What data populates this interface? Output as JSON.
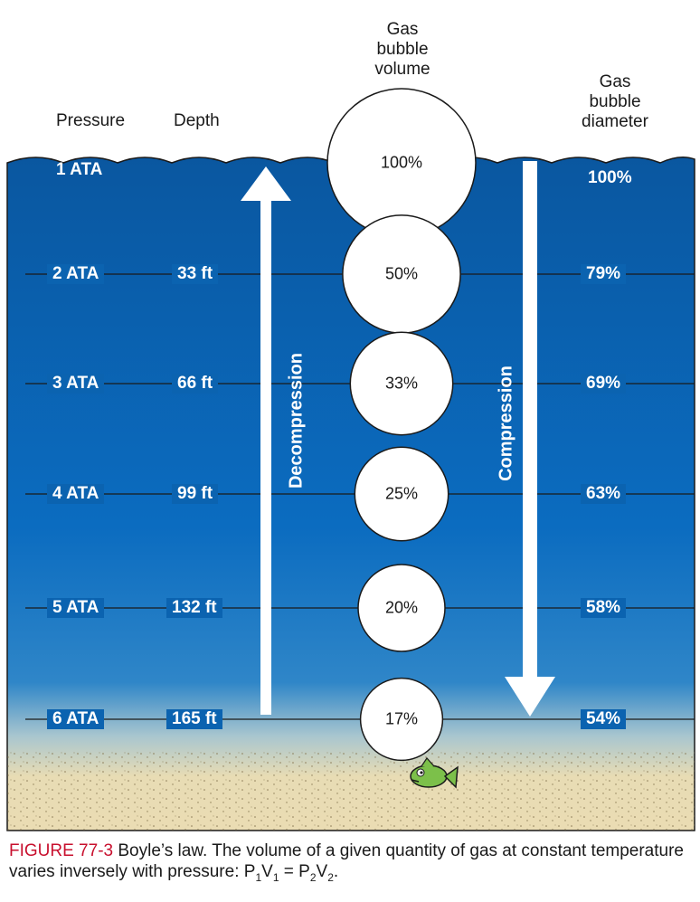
{
  "headers": {
    "pressure": "Pressure",
    "depth": "Depth",
    "volume_lines": [
      "Gas",
      "bubble",
      "volume"
    ],
    "diameter_lines": [
      "Gas",
      "bubble",
      "diameter"
    ]
  },
  "levels": [
    {
      "pressure": "1 ATA",
      "depth": "",
      "volume_pct": 100,
      "volume_label": "100%",
      "diameter": "100%"
    },
    {
      "pressure": "2 ATA",
      "depth": "33 ft",
      "volume_pct": 50,
      "volume_label": "50%",
      "diameter": "79%"
    },
    {
      "pressure": "3 ATA",
      "depth": "66 ft",
      "volume_pct": 33,
      "volume_label": "33%",
      "diameter": "69%"
    },
    {
      "pressure": "4 ATA",
      "depth": "99 ft",
      "volume_pct": 25,
      "volume_label": "25%",
      "diameter": "63%"
    },
    {
      "pressure": "5 ATA",
      "depth": "132 ft",
      "volume_pct": 20,
      "volume_label": "20%",
      "diameter": "58%"
    },
    {
      "pressure": "6 ATA",
      "depth": "165 ft",
      "volume_pct": 17,
      "volume_label": "17%",
      "diameter": "54%"
    }
  ],
  "arrows": {
    "up_label": "Decompression",
    "down_label": "Compression"
  },
  "caption": {
    "figure": "FIGURE 77-3",
    "text": " Boyle’s law. The volume of a given quantity of gas at constant temperature varies inversely with pressure: P",
    "eq_sub1": "1",
    "eq_v1": "V",
    "eq_sub2": "1",
    "eq_mid": " = P",
    "eq_sub3": "2",
    "eq_v2": "V",
    "eq_sub4": "2",
    "eq_end": "."
  },
  "colors": {
    "water_top": "#0a5da8",
    "water_mid": "#0b6cc0",
    "sand": "#e8d9b0",
    "caption_red": "#c8102e"
  }
}
